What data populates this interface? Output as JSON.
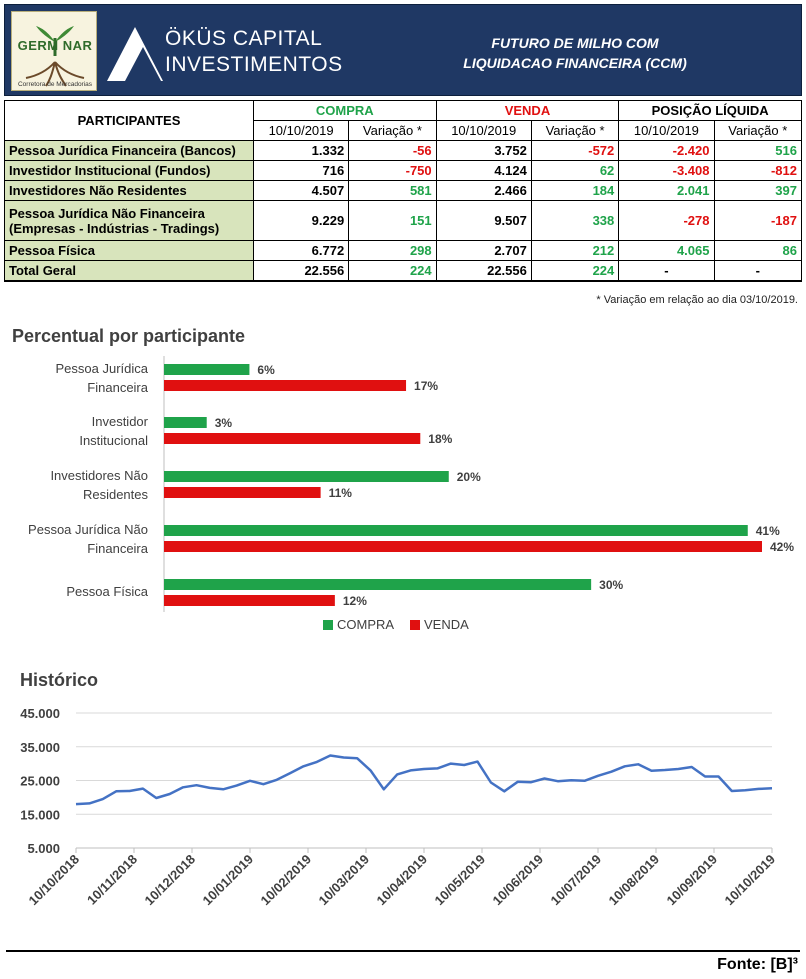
{
  "header": {
    "logo_text": "GERM NAR",
    "logo_subtitle": "Corretora de Mercadorias",
    "brand_line1": "ÖKÜS CAPITAL",
    "brand_line2": "INVESTIMENTOS",
    "title_line1": "FUTURO DE MILHO COM",
    "title_line2": "LIQUIDACAO FINANCEIRA (CCM)"
  },
  "table": {
    "participants_header": "PARTICIPANTES",
    "groups": [
      {
        "label": "COMPRA",
        "color": "#1fa34a"
      },
      {
        "label": "VENDA",
        "color": "#e01010"
      },
      {
        "label": "POSIÇÃO LÍQUIDA",
        "color": "#000000"
      }
    ],
    "sub_headers": [
      "10/10/2019",
      "Variação *",
      "10/10/2019",
      "Variação *",
      "10/10/2019",
      "Variação *"
    ],
    "rows": [
      {
        "label": "Pessoa Jurídica Financeira (Bancos)",
        "cells": [
          "1.332",
          "-56",
          "3.752",
          "-572",
          "-2.420",
          "516"
        ],
        "colors": [
          "blk",
          "neg",
          "blk",
          "neg",
          "neg",
          "pos"
        ]
      },
      {
        "label": "Investidor Institucional (Fundos)",
        "cells": [
          "716",
          "-750",
          "4.124",
          "62",
          "-3.408",
          "-812"
        ],
        "colors": [
          "blk",
          "neg",
          "blk",
          "pos",
          "neg",
          "neg"
        ]
      },
      {
        "label": "Investidores Não Residentes",
        "cells": [
          "4.507",
          "581",
          "2.466",
          "184",
          "2.041",
          "397"
        ],
        "colors": [
          "blk",
          "pos",
          "blk",
          "pos",
          "pos",
          "pos"
        ]
      },
      {
        "label": "Pessoa Jurídica Não Financeira",
        "label2": "(Empresas - Indústrias - Tradings)",
        "cells": [
          "9.229",
          "151",
          "9.507",
          "338",
          "-278",
          "-187"
        ],
        "colors": [
          "blk",
          "pos",
          "blk",
          "pos",
          "neg",
          "neg"
        ]
      },
      {
        "label": "Pessoa Física",
        "cells": [
          "6.772",
          "298",
          "2.707",
          "212",
          "4.065",
          "86"
        ],
        "colors": [
          "blk",
          "pos",
          "blk",
          "pos",
          "pos",
          "pos"
        ]
      },
      {
        "label": "Total Geral",
        "cells": [
          "22.556",
          "224",
          "22.556",
          "224",
          "-",
          "-"
        ],
        "colors": [
          "blk",
          "pos",
          "blk",
          "pos",
          "blk",
          "blk"
        ]
      }
    ],
    "note": "* Variação em relação ao dia 03/10/2019."
  },
  "chart_data": [
    {
      "type": "bar",
      "orientation": "horizontal",
      "title": "Percentual por participante",
      "categories": [
        [
          "Pessoa Jurídica",
          "Financeira"
        ],
        [
          "Investidor",
          "Institucional"
        ],
        [
          "Investidores Não",
          "Residentes"
        ],
        [
          "Pessoa Jurídica Não",
          "Financeira"
        ],
        [
          "Pessoa Física"
        ]
      ],
      "series": [
        {
          "name": "COMPRA",
          "color": "#1fa34a",
          "values": [
            6,
            3,
            20,
            41,
            30
          ],
          "labels": [
            "6%",
            "3%",
            "20%",
            "41%",
            "30%"
          ]
        },
        {
          "name": "VENDA",
          "color": "#e01010",
          "values": [
            17,
            18,
            11,
            42,
            12
          ],
          "labels": [
            "17%",
            "18%",
            "11%",
            "42%",
            "12%"
          ]
        }
      ],
      "xlim": [
        0,
        42
      ],
      "legend": "bottom",
      "grid": false
    },
    {
      "type": "line",
      "title": "Histórico",
      "color": "#4472c4",
      "ylim": [
        5000,
        45000
      ],
      "y_ticks": [
        "45.000",
        "35.000",
        "25.000",
        "15.000",
        "5.000"
      ],
      "y_tick_values": [
        45000,
        35000,
        25000,
        15000,
        5000
      ],
      "x_ticks": [
        "10/10/2018",
        "10/11/2018",
        "10/12/2018",
        "10/01/2019",
        "10/02/2019",
        "10/03/2019",
        "10/04/2019",
        "10/05/2019",
        "10/06/2019",
        "10/07/2019",
        "10/08/2019",
        "10/09/2019",
        "10/10/2019"
      ],
      "values": [
        18000,
        18200,
        19500,
        21800,
        21900,
        22600,
        19800,
        21000,
        23000,
        23600,
        22800,
        22400,
        23500,
        24900,
        23900,
        25200,
        27200,
        29200,
        30500,
        32400,
        31800,
        31600,
        28000,
        22400,
        26800,
        28000,
        28400,
        28600,
        30000,
        29600,
        30600,
        24400,
        21800,
        24600,
        24500,
        25600,
        24800,
        25100,
        24900,
        26400,
        27600,
        29200,
        29800,
        27900,
        28100,
        28400,
        29000,
        26200,
        26200,
        21900,
        22100,
        22500,
        22700
      ],
      "grid": "horizontal"
    }
  ],
  "source": "Fonte: [B]³"
}
